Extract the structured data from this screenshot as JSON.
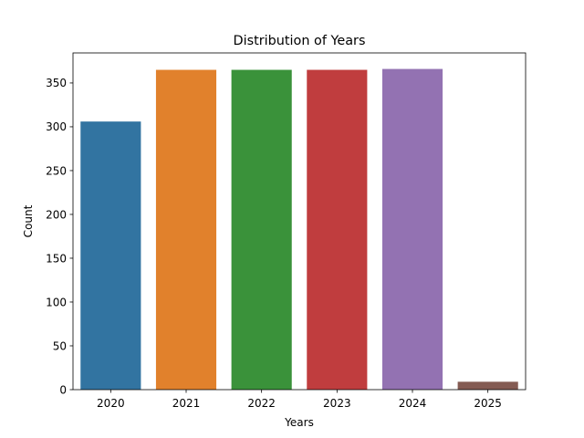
{
  "chart_data": {
    "type": "bar",
    "title": "Distribution of Years",
    "xlabel": "Years",
    "ylabel": "Count",
    "categories": [
      "2020",
      "2021",
      "2022",
      "2023",
      "2024",
      "2025"
    ],
    "values": [
      306,
      365,
      365,
      365,
      366,
      9
    ],
    "colors": [
      "#3274a1",
      "#e1812c",
      "#3a923a",
      "#c03d3e",
      "#9372b2",
      "#845b53"
    ],
    "ylim": [
      0,
      384.3
    ],
    "yticks": [
      0,
      50,
      100,
      150,
      200,
      250,
      300,
      350
    ],
    "grid": false,
    "legend": "none"
  }
}
